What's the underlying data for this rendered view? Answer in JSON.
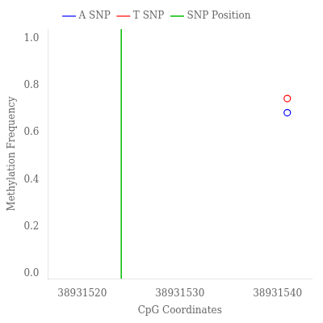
{
  "chart_data": {
    "type": "scatter",
    "xlabel": "CpG Coordinates",
    "ylabel": "Methylation Frequency",
    "xlim": [
      38931516.5,
      38931543.5
    ],
    "ylim": [
      -0.02,
      1.04
    ],
    "xticks": [
      38931520,
      38931530,
      38931540
    ],
    "yticks": [
      {
        "value": 0.0,
        "label": "0.0"
      },
      0.2,
      0.4,
      0.6,
      0.8,
      {
        "value": 1.0,
        "label": "1.0"
      }
    ],
    "x": [
      38931541
    ],
    "series": [
      {
        "name": "A SNP",
        "color": "blue",
        "marker": "circle",
        "values": [
          0.685
        ]
      },
      {
        "name": "T SNP",
        "color": "red",
        "marker": "circle",
        "values": [
          0.745
        ]
      }
    ],
    "vlines": [
      {
        "name": "SNP Position",
        "color": "#00bb00",
        "x": 38931524
      }
    ],
    "grid": false,
    "legend": "top"
  }
}
